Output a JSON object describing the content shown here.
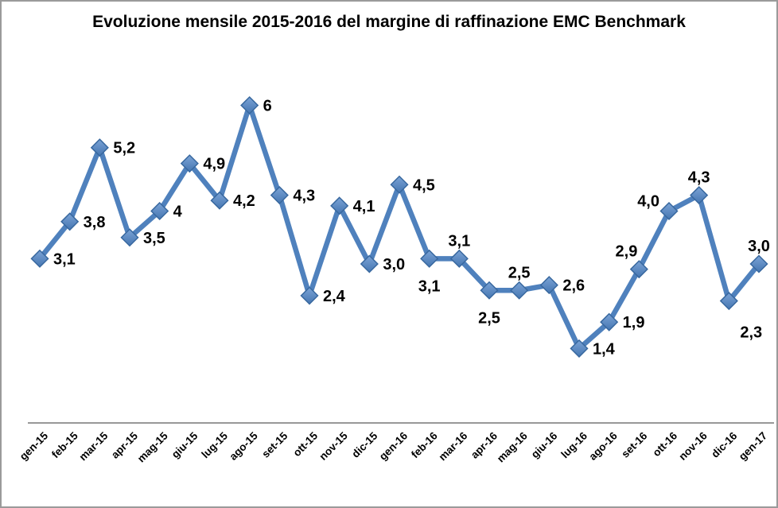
{
  "chart_data": {
    "type": "line",
    "title": "Evoluzione mensile 2015-2016 del margine di raffinazione EMC Benchmark",
    "xlabel": "",
    "ylabel": "",
    "ylim": [
      0,
      7
    ],
    "grid": false,
    "legend": false,
    "decimal_separator": ",",
    "categories": [
      "gen-15",
      "feb-15",
      "mar-15",
      "apr-15",
      "mag-15",
      "giu-15",
      "lug-15",
      "ago-15",
      "set-15",
      "ott-15",
      "nov-15",
      "dic-15",
      "gen-16",
      "feb-16",
      "mar-16",
      "apr-16",
      "mag-16",
      "giu-16",
      "lug-16",
      "ago-16",
      "set-16",
      "ott-16",
      "nov-16",
      "dic-16",
      "gen-17"
    ],
    "values": [
      3.1,
      3.8,
      5.2,
      3.5,
      4,
      4.9,
      4.2,
      6,
      4.3,
      2.4,
      4.1,
      3.0,
      4.5,
      3.1,
      3.1,
      2.5,
      2.5,
      2.6,
      1.4,
      1.9,
      2.9,
      4.0,
      4.3,
      2.3,
      3.0
    ],
    "point_labels": [
      "3,1",
      "3,8",
      "5,2",
      "3,5",
      "4",
      "4,9",
      "4,2",
      "6",
      "4,3",
      "2,4",
      "4,1",
      "3,0",
      "4,5",
      "3,1",
      "3,1",
      "2,5",
      "2,5",
      "2,6",
      "1,4",
      "1,9",
      "2,9",
      "4,0",
      "4,3",
      "2,3",
      "3,0"
    ],
    "label_positions": [
      "right",
      "right",
      "right",
      "right",
      "right",
      "right",
      "right",
      "right",
      "right",
      "right",
      "right",
      "right",
      "right",
      "below",
      "above",
      "below",
      "above",
      "right",
      "right",
      "right",
      "above-left",
      "left-up",
      "above",
      "below-right",
      "above"
    ],
    "colors": {
      "line": "#4f81bd",
      "marker_fill_top": "#7ba3d6",
      "marker_fill_bottom": "#4576b1",
      "marker_border": "#38689f",
      "axis_line": "#898989",
      "label_text": "#000000",
      "tick_text": "#000000",
      "frame_border": "#9a9a9a",
      "background": "#ffffff"
    }
  }
}
